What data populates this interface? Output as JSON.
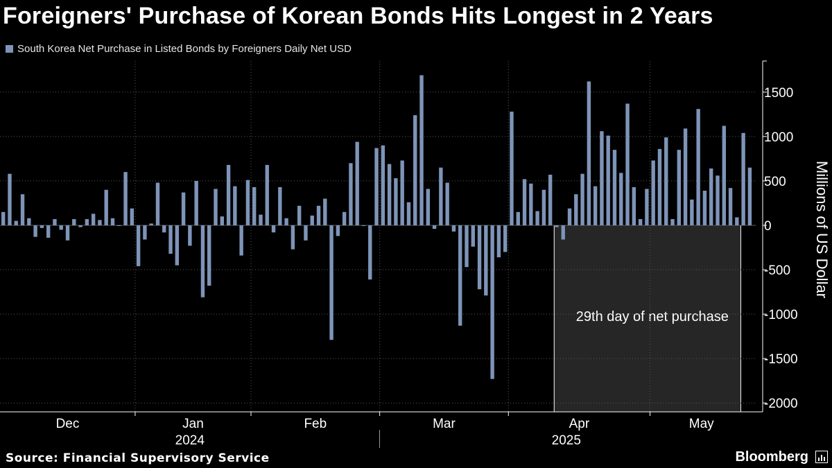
{
  "title": "Foreigners' Purchase of Korean Bonds Hits Longest in 2 Years",
  "source": "Source: Financial Supervisory Service",
  "brand": "Bloomberg",
  "colors": {
    "bar": "#7e94b8",
    "highlight": "#262626",
    "background": "#000000"
  },
  "chart_data": {
    "type": "bar",
    "legend": "South Korea Net Purchase in Listed Bonds by Foreigners Daily Net USD",
    "ylabel": "Millions of US Dollar",
    "ylim": [
      -2100,
      1850
    ],
    "yticks": [
      1500,
      1000,
      500,
      0,
      -500,
      -1000,
      -1500,
      -2000
    ],
    "xticks": [
      {
        "label": "Dec",
        "sub": "2024",
        "date": "2024-12-01"
      },
      {
        "label": "Jan",
        "sub": "",
        "date": "2025-01-01"
      },
      {
        "label": "Feb",
        "sub": "",
        "date": "2025-02-01"
      },
      {
        "label": "Mar",
        "sub": "2025",
        "date": "2025-03-01"
      },
      {
        "label": "Apr",
        "sub": "",
        "date": "2025-04-01"
      },
      {
        "label": "May",
        "sub": "",
        "date": "2025-05-01"
      }
    ],
    "annotation": "29th day of net purchase",
    "highlight_range": [
      "2025-04-10",
      "2025-05-23"
    ],
    "series": [
      {
        "values": [
          150,
          580,
          50,
          350,
          80,
          -130,
          -30,
          -140,
          70,
          -50,
          -170,
          70,
          -20,
          70,
          130,
          60,
          400,
          80,
          0,
          600,
          190,
          -460,
          -160,
          20,
          480,
          -80,
          -320,
          -450,
          370,
          -230,
          500,
          -810,
          -680,
          410,
          100,
          680,
          440,
          -340,
          510,
          430,
          120,
          680,
          -80,
          430,
          80,
          -270,
          220,
          -170,
          110,
          220,
          300,
          -1290,
          -120,
          150,
          700,
          940,
          0,
          -610,
          870,
          900,
          690,
          530,
          730,
          260,
          1240,
          1690,
          410,
          -40,
          650,
          480,
          -70,
          -1130,
          -470,
          -240,
          -720,
          -790,
          -1730,
          -360,
          -300,
          1280,
          150,
          520,
          470,
          160,
          400,
          570,
          -20,
          -160,
          190,
          350,
          580,
          1620,
          440,
          1060,
          1010,
          850,
          590,
          1370,
          430,
          70,
          410,
          730,
          860,
          990,
          70,
          850,
          1090,
          290,
          1310,
          390,
          640,
          560,
          1120,
          420,
          90,
          1040,
          650
        ]
      }
    ]
  }
}
